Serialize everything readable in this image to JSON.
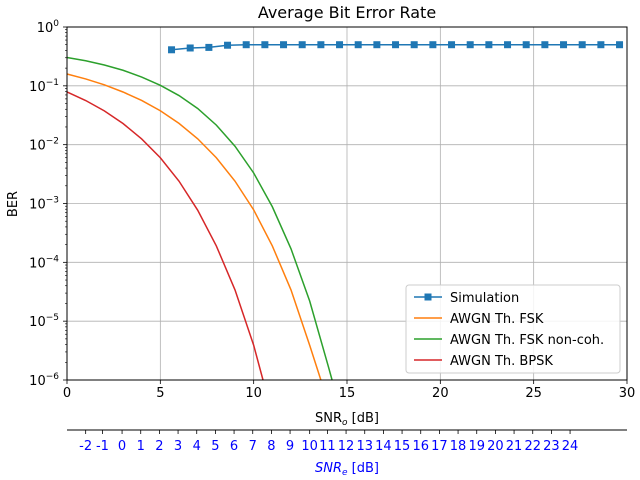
{
  "chart_data": {
    "type": "line",
    "title": "Average Bit Error Rate",
    "ylabel": "BER",
    "xlabel_main": "SNR",
    "xlabel_sub": "o",
    "xlabel_unit": " [dB]",
    "xlim": [
      0,
      30
    ],
    "ylim": [
      1e-06,
      1
    ],
    "yscale": "log",
    "grid": true,
    "legend_position": "bottom-right",
    "x_ticks": [
      "0",
      "5",
      "10",
      "15",
      "20",
      "25",
      "30"
    ],
    "y_ticks": [
      {
        "base": "10",
        "exp": "0"
      },
      {
        "base": "10",
        "exp": "−1"
      },
      {
        "base": "10",
        "exp": "−2"
      },
      {
        "base": "10",
        "exp": "−3"
      },
      {
        "base": "10",
        "exp": "−4"
      },
      {
        "base": "10",
        "exp": "−5"
      },
      {
        "base": "10",
        "exp": "−6"
      }
    ],
    "secondary_axis": {
      "label_main": "SNR",
      "label_sub": "e",
      "label_unit": " [dB]",
      "color": "#0000ff",
      "ticks": [
        {
          "x": 1.0,
          "label": "-2"
        },
        {
          "x": 1.9,
          "label": "-1"
        },
        {
          "x": 2.95,
          "label": "0"
        },
        {
          "x": 3.95,
          "label": "1"
        },
        {
          "x": 4.95,
          "label": "2"
        },
        {
          "x": 5.95,
          "label": "3"
        },
        {
          "x": 6.95,
          "label": "4"
        },
        {
          "x": 7.95,
          "label": "5"
        },
        {
          "x": 8.95,
          "label": "6"
        },
        {
          "x": 9.95,
          "label": "7"
        },
        {
          "x": 10.95,
          "label": "8"
        },
        {
          "x": 11.95,
          "label": "9"
        },
        {
          "x": 13.0,
          "label": "10"
        },
        {
          "x": 13.95,
          "label": "11"
        },
        {
          "x": 14.95,
          "label": "12"
        },
        {
          "x": 15.95,
          "label": "13"
        },
        {
          "x": 16.95,
          "label": "14"
        },
        {
          "x": 17.95,
          "label": "15"
        },
        {
          "x": 18.95,
          "label": "16"
        },
        {
          "x": 19.95,
          "label": "17"
        },
        {
          "x": 20.95,
          "label": "18"
        },
        {
          "x": 21.95,
          "label": "19"
        },
        {
          "x": 22.95,
          "label": "20"
        },
        {
          "x": 23.95,
          "label": "21"
        },
        {
          "x": 24.95,
          "label": "22"
        },
        {
          "x": 25.95,
          "label": "23"
        },
        {
          "x": 26.95,
          "label": "24"
        }
      ]
    },
    "series": [
      {
        "name": "Simulation",
        "color": "#1f77b4",
        "marker": "square",
        "x": [
          5.6,
          6.6,
          7.6,
          8.6,
          9.6,
          10.6,
          11.6,
          12.6,
          13.6,
          14.6,
          15.6,
          16.6,
          17.6,
          18.6,
          19.6,
          20.6,
          21.6,
          22.6,
          23.6,
          24.6,
          25.6,
          26.6,
          27.6,
          28.6,
          29.6
        ],
        "y": [
          0.41,
          0.44,
          0.45,
          0.49,
          0.5,
          0.5,
          0.5,
          0.5,
          0.5,
          0.5,
          0.5,
          0.5,
          0.5,
          0.5,
          0.5,
          0.5,
          0.5,
          0.5,
          0.5,
          0.5,
          0.5,
          0.5,
          0.5,
          0.5,
          0.5
        ]
      },
      {
        "name": "AWGN Th. FSK",
        "color": "#ff7f0e",
        "marker": "none",
        "x": [
          0,
          1,
          2,
          3,
          4,
          5,
          6,
          7,
          8,
          9,
          10,
          11,
          12,
          13,
          13.6
        ],
        "y": [
          0.159,
          0.131,
          0.104,
          0.0786,
          0.0565,
          0.0377,
          0.023,
          0.0126,
          0.006,
          0.0024,
          0.00078,
          0.00019,
          3.4e-05,
          3.9e-06,
          1e-06
        ]
      },
      {
        "name": "AWGN Th. FSK non-coh.",
        "color": "#2ca02c",
        "marker": "none",
        "x": [
          0,
          1,
          2,
          3,
          4,
          5,
          6,
          7,
          8,
          9,
          10,
          11,
          12,
          13,
          14,
          14.2
        ],
        "y": [
          0.303,
          0.267,
          0.226,
          0.184,
          0.141,
          0.102,
          0.0683,
          0.0412,
          0.0215,
          0.0094,
          0.0033,
          0.00088,
          0.00017,
          2.2e-05,
          1.7e-06,
          1e-06
        ]
      },
      {
        "name": "AWGN Th. BPSK",
        "color": "#d62728",
        "marker": "none",
        "x": [
          0,
          1,
          2,
          3,
          4,
          5,
          6,
          7,
          8,
          9,
          10,
          10.5
        ],
        "y": [
          0.0786,
          0.0563,
          0.0375,
          0.0229,
          0.0125,
          0.006,
          0.0024,
          0.00077,
          0.00019,
          3.4e-05,
          3.9e-06,
          1e-06
        ]
      }
    ]
  }
}
